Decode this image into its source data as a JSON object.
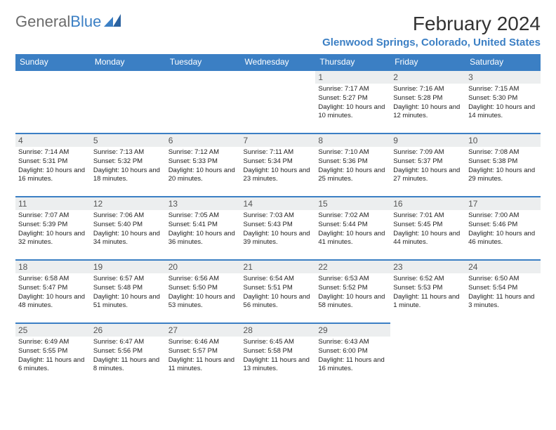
{
  "brand": {
    "general": "General",
    "blue": "Blue"
  },
  "title": "February 2024",
  "location": "Glenwood Springs, Colorado, United States",
  "colors": {
    "header_bg": "#3b7fc4",
    "header_text": "#ffffff",
    "daynum_bg": "#eceeef",
    "border": "#3b7fc4",
    "body_text": "#222222",
    "brand_grey": "#6b6b6b",
    "brand_blue": "#3b7fc4"
  },
  "weekdays": [
    "Sunday",
    "Monday",
    "Tuesday",
    "Wednesday",
    "Thursday",
    "Friday",
    "Saturday"
  ],
  "weeks": [
    [
      null,
      null,
      null,
      null,
      {
        "n": "1",
        "sr": "Sunrise: 7:17 AM",
        "ss": "Sunset: 5:27 PM",
        "dl": "Daylight: 10 hours and 10 minutes."
      },
      {
        "n": "2",
        "sr": "Sunrise: 7:16 AM",
        "ss": "Sunset: 5:28 PM",
        "dl": "Daylight: 10 hours and 12 minutes."
      },
      {
        "n": "3",
        "sr": "Sunrise: 7:15 AM",
        "ss": "Sunset: 5:30 PM",
        "dl": "Daylight: 10 hours and 14 minutes."
      }
    ],
    [
      {
        "n": "4",
        "sr": "Sunrise: 7:14 AM",
        "ss": "Sunset: 5:31 PM",
        "dl": "Daylight: 10 hours and 16 minutes."
      },
      {
        "n": "5",
        "sr": "Sunrise: 7:13 AM",
        "ss": "Sunset: 5:32 PM",
        "dl": "Daylight: 10 hours and 18 minutes."
      },
      {
        "n": "6",
        "sr": "Sunrise: 7:12 AM",
        "ss": "Sunset: 5:33 PM",
        "dl": "Daylight: 10 hours and 20 minutes."
      },
      {
        "n": "7",
        "sr": "Sunrise: 7:11 AM",
        "ss": "Sunset: 5:34 PM",
        "dl": "Daylight: 10 hours and 23 minutes."
      },
      {
        "n": "8",
        "sr": "Sunrise: 7:10 AM",
        "ss": "Sunset: 5:36 PM",
        "dl": "Daylight: 10 hours and 25 minutes."
      },
      {
        "n": "9",
        "sr": "Sunrise: 7:09 AM",
        "ss": "Sunset: 5:37 PM",
        "dl": "Daylight: 10 hours and 27 minutes."
      },
      {
        "n": "10",
        "sr": "Sunrise: 7:08 AM",
        "ss": "Sunset: 5:38 PM",
        "dl": "Daylight: 10 hours and 29 minutes."
      }
    ],
    [
      {
        "n": "11",
        "sr": "Sunrise: 7:07 AM",
        "ss": "Sunset: 5:39 PM",
        "dl": "Daylight: 10 hours and 32 minutes."
      },
      {
        "n": "12",
        "sr": "Sunrise: 7:06 AM",
        "ss": "Sunset: 5:40 PM",
        "dl": "Daylight: 10 hours and 34 minutes."
      },
      {
        "n": "13",
        "sr": "Sunrise: 7:05 AM",
        "ss": "Sunset: 5:41 PM",
        "dl": "Daylight: 10 hours and 36 minutes."
      },
      {
        "n": "14",
        "sr": "Sunrise: 7:03 AM",
        "ss": "Sunset: 5:43 PM",
        "dl": "Daylight: 10 hours and 39 minutes."
      },
      {
        "n": "15",
        "sr": "Sunrise: 7:02 AM",
        "ss": "Sunset: 5:44 PM",
        "dl": "Daylight: 10 hours and 41 minutes."
      },
      {
        "n": "16",
        "sr": "Sunrise: 7:01 AM",
        "ss": "Sunset: 5:45 PM",
        "dl": "Daylight: 10 hours and 44 minutes."
      },
      {
        "n": "17",
        "sr": "Sunrise: 7:00 AM",
        "ss": "Sunset: 5:46 PM",
        "dl": "Daylight: 10 hours and 46 minutes."
      }
    ],
    [
      {
        "n": "18",
        "sr": "Sunrise: 6:58 AM",
        "ss": "Sunset: 5:47 PM",
        "dl": "Daylight: 10 hours and 48 minutes."
      },
      {
        "n": "19",
        "sr": "Sunrise: 6:57 AM",
        "ss": "Sunset: 5:48 PM",
        "dl": "Daylight: 10 hours and 51 minutes."
      },
      {
        "n": "20",
        "sr": "Sunrise: 6:56 AM",
        "ss": "Sunset: 5:50 PM",
        "dl": "Daylight: 10 hours and 53 minutes."
      },
      {
        "n": "21",
        "sr": "Sunrise: 6:54 AM",
        "ss": "Sunset: 5:51 PM",
        "dl": "Daylight: 10 hours and 56 minutes."
      },
      {
        "n": "22",
        "sr": "Sunrise: 6:53 AM",
        "ss": "Sunset: 5:52 PM",
        "dl": "Daylight: 10 hours and 58 minutes."
      },
      {
        "n": "23",
        "sr": "Sunrise: 6:52 AM",
        "ss": "Sunset: 5:53 PM",
        "dl": "Daylight: 11 hours and 1 minute."
      },
      {
        "n": "24",
        "sr": "Sunrise: 6:50 AM",
        "ss": "Sunset: 5:54 PM",
        "dl": "Daylight: 11 hours and 3 minutes."
      }
    ],
    [
      {
        "n": "25",
        "sr": "Sunrise: 6:49 AM",
        "ss": "Sunset: 5:55 PM",
        "dl": "Daylight: 11 hours and 6 minutes."
      },
      {
        "n": "26",
        "sr": "Sunrise: 6:47 AM",
        "ss": "Sunset: 5:56 PM",
        "dl": "Daylight: 11 hours and 8 minutes."
      },
      {
        "n": "27",
        "sr": "Sunrise: 6:46 AM",
        "ss": "Sunset: 5:57 PM",
        "dl": "Daylight: 11 hours and 11 minutes."
      },
      {
        "n": "28",
        "sr": "Sunrise: 6:45 AM",
        "ss": "Sunset: 5:58 PM",
        "dl": "Daylight: 11 hours and 13 minutes."
      },
      {
        "n": "29",
        "sr": "Sunrise: 6:43 AM",
        "ss": "Sunset: 6:00 PM",
        "dl": "Daylight: 11 hours and 16 minutes."
      },
      null,
      null
    ]
  ]
}
